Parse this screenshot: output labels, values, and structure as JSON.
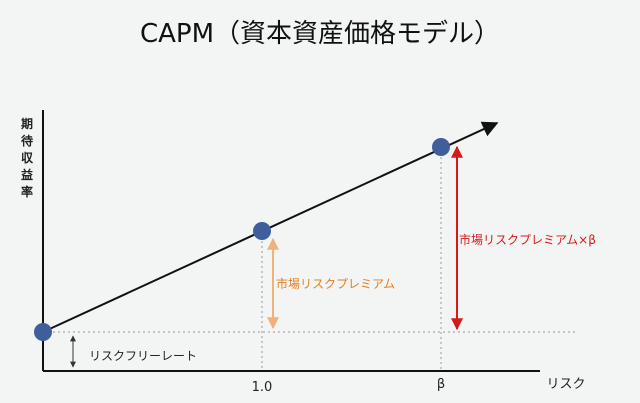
{
  "title": "CAPM（資本資産価格モデル）",
  "y_axis_label": "期待収益率",
  "x_axis_label": "リスク",
  "x_ticks": [
    "1.0",
    "β"
  ],
  "annotations": {
    "risk_free": "リスクフリーレート",
    "market_premium": "市場リスクプレミアム",
    "market_premium_beta": "市場リスクプレミアム×β"
  },
  "points": [
    {
      "name": "risk-free",
      "x": 0,
      "y": 0
    },
    {
      "name": "market",
      "x": 1.0,
      "y": 1.0
    },
    {
      "name": "beta",
      "x": "β",
      "y": "1.0×β"
    }
  ],
  "colors": {
    "point": "#3e5f9c",
    "line": "#111111",
    "premium_arrow": "#f0b27a",
    "premium_text": "#e67e22",
    "beta_arrow": "#d7191c",
    "beta_text": "#d7191c",
    "guide": "#999999"
  }
}
